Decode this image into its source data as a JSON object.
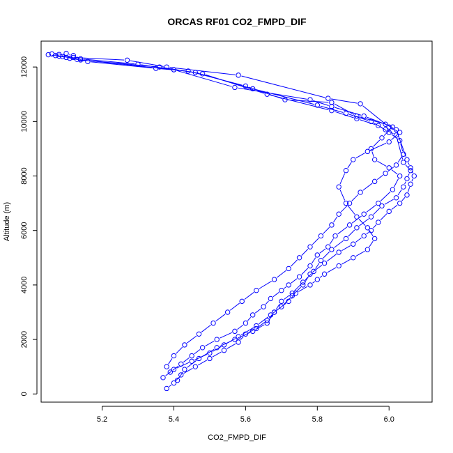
{
  "chart_data": {
    "type": "line",
    "title": "ORCAS RF01 CO2_FMPD_DIF",
    "xlabel": "CO2_FMPD_DIF",
    "ylabel": "Altitude (m)",
    "xlim": [
      5.03,
      6.12
    ],
    "ylim": [
      -300,
      12950
    ],
    "xticks": [
      5.2,
      5.4,
      5.6,
      5.8,
      6.0
    ],
    "xtick_labels": [
      "5.2",
      "5.4",
      "5.6",
      "5.8",
      "6.0"
    ],
    "yticks": [
      0,
      2000,
      4000,
      6000,
      8000,
      10000,
      12000
    ],
    "ytick_labels": [
      "0",
      "2000",
      "4000",
      "6000",
      "8000",
      "10000",
      "12000"
    ],
    "grid": false,
    "color": "#0000ff",
    "series": [
      {
        "x": [
          5.05,
          5.08,
          5.12,
          5.27,
          5.38,
          5.58,
          5.83,
          5.92,
          6.0,
          6.03,
          6.0,
          5.94,
          5.9,
          5.88,
          5.86,
          5.88,
          5.91,
          5.94,
          5.96,
          5.94,
          5.9,
          5.86,
          5.82,
          5.8,
          5.78,
          5.74,
          5.72,
          5.68,
          5.66,
          5.63,
          5.6,
          5.58,
          5.54,
          5.5,
          5.46,
          5.42,
          5.4,
          5.38
        ],
        "y": [
          12450,
          12400,
          12350,
          12250,
          12000,
          11700,
          10850,
          10650,
          9800,
          9600,
          9250,
          8900,
          8600,
          8200,
          7600,
          7000,
          6500,
          6100,
          5700,
          5300,
          5000,
          4700,
          4400,
          4200,
          4000,
          3700,
          3400,
          3000,
          2700,
          2400,
          2200,
          1900,
          1600,
          1300,
          1000,
          700,
          400,
          200
        ]
      },
      {
        "x": [
          5.06,
          5.09,
          5.14,
          5.3,
          5.4,
          5.57,
          5.78,
          5.84,
          5.93,
          6.01,
          5.98,
          5.95,
          5.96,
          6.0,
          6.03,
          6.01,
          5.97,
          5.93,
          5.89,
          5.85,
          5.83,
          5.8,
          5.78,
          5.75,
          5.72,
          5.7,
          5.67,
          5.65,
          5.62,
          5.6,
          5.57,
          5.52,
          5.48,
          5.45,
          5.42,
          5.39
        ],
        "y": [
          12480,
          12380,
          12300,
          12100,
          11900,
          11250,
          10800,
          10550,
          10200,
          9800,
          9400,
          9000,
          8600,
          8300,
          8000,
          7500,
          7000,
          6600,
          6200,
          5800,
          5400,
          5100,
          4700,
          4300,
          4000,
          3800,
          3500,
          3200,
          2900,
          2600,
          2300,
          2000,
          1700,
          1400,
          1100,
          800
        ]
      },
      {
        "x": [
          5.07,
          5.1,
          5.16,
          5.35,
          5.44,
          5.6,
          5.71,
          5.84,
          5.91,
          5.99,
          6.02,
          6.05,
          6.06,
          6.07,
          6.06,
          6.05,
          6.03,
          6.0,
          5.97,
          5.95,
          5.93,
          5.9,
          5.86,
          5.82,
          5.78,
          5.76,
          5.73,
          5.7,
          5.67,
          5.63,
          5.58,
          5.54,
          5.5,
          5.45,
          5.4,
          5.37
        ],
        "y": [
          12420,
          12350,
          12200,
          11950,
          11850,
          11300,
          10800,
          10700,
          10200,
          9900,
          9700,
          8600,
          8300,
          8000,
          7700,
          7300,
          7000,
          6700,
          6300,
          6000,
          5800,
          5500,
          5200,
          4800,
          4400,
          4000,
          3600,
          3200,
          2900,
          2500,
          2100,
          1800,
          1500,
          1200,
          900,
          600
        ]
      },
      {
        "x": [
          5.08,
          5.11,
          5.13,
          5.4,
          5.46,
          5.62,
          5.8,
          5.88,
          5.95,
          5.99,
          6.02,
          6.04,
          6.06,
          6.05,
          6.04,
          6.02,
          5.98,
          5.95,
          5.91,
          5.88,
          5.84,
          5.81,
          5.79,
          5.76,
          5.73,
          5.7,
          5.68,
          5.66,
          5.62,
          5.57,
          5.52,
          5.47,
          5.43,
          5.41
        ],
        "y": [
          12460,
          12320,
          12280,
          11900,
          11800,
          11200,
          10600,
          10300,
          10000,
          9700,
          9500,
          8500,
          8200,
          7900,
          7600,
          7200,
          6900,
          6500,
          6100,
          5700,
          5300,
          4900,
          4500,
          4100,
          3700,
          3400,
          3000,
          2600,
          2300,
          2000,
          1700,
          1300,
          900,
          500
        ]
      },
      {
        "x": [
          5.1,
          5.12,
          5.14,
          5.36,
          5.48,
          5.66,
          5.84,
          5.91,
          5.97,
          6.0,
          6.03,
          6.04,
          6.02,
          5.99,
          5.96,
          5.92,
          5.89,
          5.86,
          5.84,
          5.81,
          5.78,
          5.75,
          5.72,
          5.68,
          5.63,
          5.59,
          5.55,
          5.51,
          5.47,
          5.43,
          5.4,
          5.38
        ],
        "y": [
          12500,
          12420,
          12260,
          12000,
          11750,
          11000,
          10400,
          10100,
          9850,
          9600,
          9300,
          8800,
          8400,
          8100,
          7800,
          7400,
          7000,
          6600,
          6200,
          5800,
          5400,
          5000,
          4600,
          4200,
          3800,
          3400,
          3000,
          2600,
          2200,
          1800,
          1400,
          1000
        ]
      }
    ]
  }
}
